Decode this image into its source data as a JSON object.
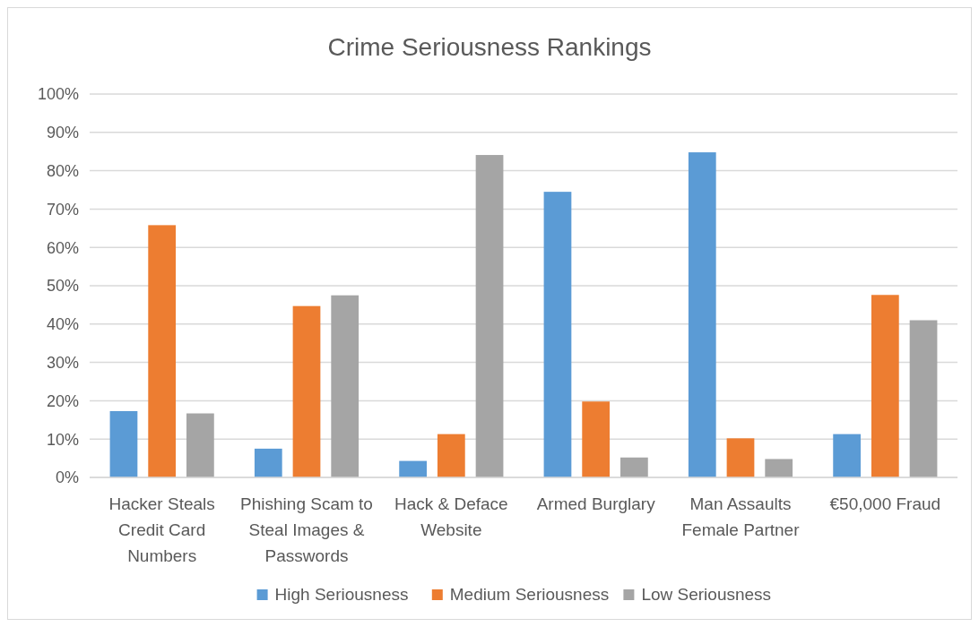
{
  "chart_data": {
    "type": "bar",
    "title": "Crime Seriousness Rankings",
    "categories": [
      "Hacker Steals Credit Card Numbers",
      "Phishing Scam to Steal Images & Passwords",
      "Hack & Deface Website",
      "Armed Burglary",
      "Man Assaults Female Partner",
      "€50,000 Fraud"
    ],
    "series": [
      {
        "name": "High Seriousness",
        "color": "#5b9bd5",
        "values": [
          17.3,
          7.5,
          4.3,
          74.5,
          84.8,
          11.3
        ]
      },
      {
        "name": "Medium Seriousness",
        "color": "#ed7d31",
        "values": [
          65.8,
          44.7,
          11.3,
          19.8,
          10.2,
          47.6
        ]
      },
      {
        "name": "Low Seriousness",
        "color": "#a5a5a5",
        "values": [
          16.7,
          47.5,
          84.1,
          5.2,
          4.8,
          41.0
        ]
      }
    ],
    "ylim": [
      0,
      100
    ],
    "yticks": [
      {
        "value": 0,
        "label": "0%"
      },
      {
        "value": 10,
        "label": "10%"
      },
      {
        "value": 20,
        "label": "20%"
      },
      {
        "value": 30,
        "label": "30%"
      },
      {
        "value": 40,
        "label": "40%"
      },
      {
        "value": 50,
        "label": "50%"
      },
      {
        "value": 60,
        "label": "60%"
      },
      {
        "value": 70,
        "label": "70%"
      },
      {
        "value": 80,
        "label": "80%"
      },
      {
        "value": 90,
        "label": "90%"
      },
      {
        "value": 100,
        "label": "100%"
      }
    ],
    "grid": "y",
    "legend": "bottom"
  }
}
